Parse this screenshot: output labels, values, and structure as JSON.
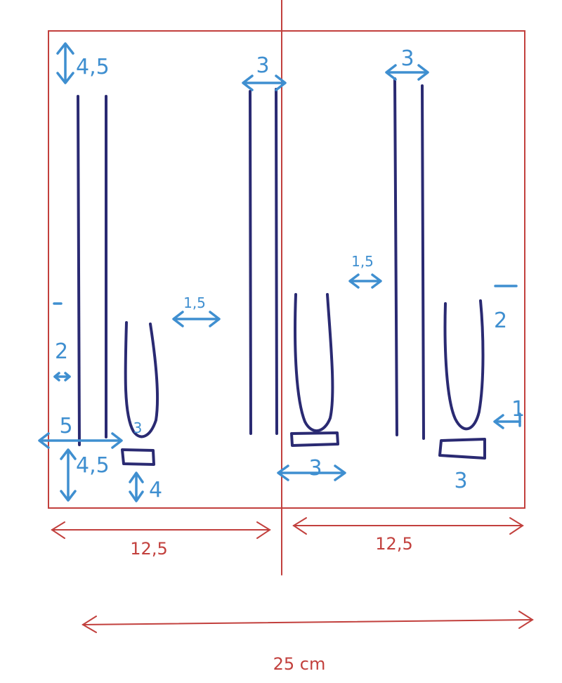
{
  "colors": {
    "frame": "#c2403d",
    "strips": "#2a2a72",
    "dimensions": "#3f8fd0"
  },
  "dimensions": {
    "left_top_margin": "4,5",
    "center_top_width": "3",
    "right_top_width": "3",
    "left_gap": "1,5",
    "right_gap": "1,5",
    "left_side_dash": "2",
    "right_side_dash": "2",
    "bottom_left_margin_width": "5",
    "bottom_left_small": "3",
    "bottom_left_height": "4,5",
    "bottom_tab_height": "4",
    "center_bottom_width": "3",
    "right_bottom_width": "3",
    "right_side_small": "1"
  },
  "measures": {
    "half_left": "12,5",
    "half_right": "12,5",
    "total": "25 cm"
  }
}
